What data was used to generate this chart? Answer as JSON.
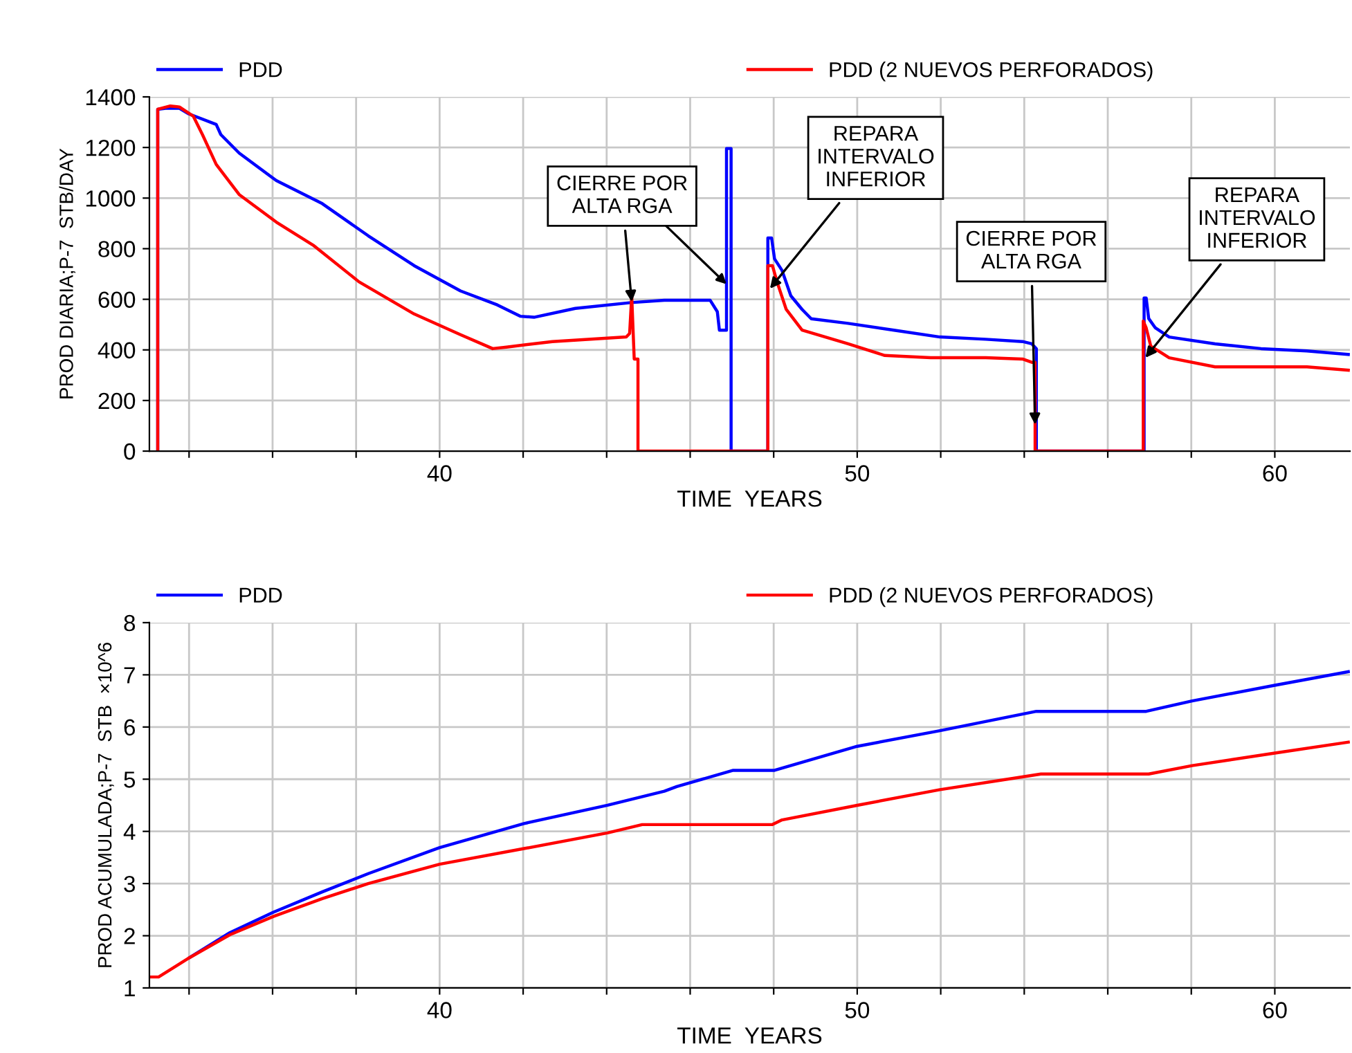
{
  "chart_data": [
    {
      "type": "line",
      "xlabel": "TIME  YEARS",
      "ylabel": "PROD DIARIA;P-7  STB/DAY",
      "xlim": [
        33.05,
        61.8
      ],
      "xticks": [
        {
          "value": 34,
          "label": null
        },
        {
          "value": 36,
          "label": null
        },
        {
          "value": 38,
          "label": null
        },
        40,
        {
          "value": 42,
          "label": null
        },
        {
          "value": 44,
          "label": null
        },
        {
          "value": 46,
          "label": null
        },
        {
          "value": 48,
          "label": null
        },
        50,
        {
          "value": 52,
          "label": null
        },
        {
          "value": 54,
          "label": null
        },
        {
          "value": 56,
          "label": null
        },
        {
          "value": 58,
          "label": null
        },
        60
      ],
      "ylim": [
        0,
        1400
      ],
      "yticks": [
        0,
        200,
        400,
        600,
        800,
        1000,
        1200,
        1400
      ],
      "grid": true,
      "legend": "top",
      "series": [
        {
          "name": "PDD",
          "color": "#0000ff",
          "x": [
            33.25,
            33.25,
            33.44,
            33.77,
            33.99,
            34.65,
            34.76,
            35.2,
            36.09,
            37.19,
            38.29,
            39.39,
            40.5,
            41.38,
            41.93,
            42.26,
            43.25,
            44.58,
            45.38,
            46.48,
            46.65,
            46.7,
            46.87,
            46.87,
            46.98,
            46.98,
            47.86,
            47.86,
            47.95,
            48.02,
            48.2,
            48.41,
            48.68,
            48.9,
            49.78,
            50.88,
            51.98,
            53.08,
            53.96,
            54.18,
            54.29,
            54.29,
            56.87,
            56.87,
            56.92,
            56.98,
            57.14,
            57.47,
            58.57,
            59.67,
            60.77,
            61.76
          ],
          "values": [
            0,
            1351,
            1355,
            1355,
            1333,
            1291,
            1251,
            1178,
            1069,
            978,
            851,
            733,
            633,
            578,
            533,
            529,
            564,
            587,
            596,
            596,
            551,
            478,
            478,
            1196,
            1196,
            0,
            0,
            842,
            842,
            760,
            714,
            614,
            560,
            523,
            505,
            478,
            451,
            442,
            433,
            424,
            405,
            0,
            0,
            605,
            605,
            524,
            487,
            451,
            424,
            405,
            396,
            382
          ]
        },
        {
          "name": "PDD (2 NUEVOS PERFORADOS)",
          "color": "#ff0000",
          "x": [
            33.25,
            33.25,
            33.55,
            33.77,
            34.1,
            34.32,
            34.65,
            35.2,
            36.09,
            36.97,
            38.07,
            39.39,
            40.5,
            41.27,
            41.6,
            42.7,
            44.47,
            44.55,
            44.6,
            44.66,
            44.75,
            44.75,
            47.86,
            47.86,
            47.97,
            48.08,
            48.3,
            48.68,
            49.78,
            50.66,
            51.76,
            53.08,
            53.96,
            54.18,
            54.26,
            54.26,
            56.85,
            56.85,
            56.92,
            57.03,
            57.47,
            58.57,
            59.67,
            60.77,
            61.76
          ],
          "values": [
            0,
            1351,
            1364,
            1360,
            1324,
            1251,
            1133,
            1014,
            905,
            814,
            669,
            542,
            460,
            405,
            411,
            433,
            451,
            465,
            614,
            364,
            364,
            0,
            0,
            733,
            733,
            669,
            560,
            478,
            424,
            378,
            369,
            369,
            364,
            351,
            351,
            0,
            0,
            514,
            487,
            415,
            369,
            333,
            333,
            333,
            320
          ]
        }
      ],
      "annotations": [
        {
          "text": "CIERRE POR\nALTA RGA",
          "x": 44.6,
          "y": 590
        },
        {
          "text": "REPARA\nINTERVALO\nINFERIOR",
          "x": 47.91,
          "y": 642
        },
        {
          "text": "CIERRE POR\nALTA RGA",
          "x": 54.26,
          "y": 105
        },
        {
          "text": "REPARA\nINTERVALO\nINFERIOR",
          "x": 56.9,
          "y": 369
        }
      ]
    },
    {
      "type": "line",
      "xlabel": "TIME  YEARS",
      "ylabel": "PROD ACUMULADA;P-7  STB  ×10^6",
      "xlim": [
        33.05,
        61.8
      ],
      "xticks": [
        {
          "value": 34,
          "label": null
        },
        {
          "value": 36,
          "label": null
        },
        {
          "value": 38,
          "label": null
        },
        40,
        {
          "value": 42,
          "label": null
        },
        {
          "value": 44,
          "label": null
        },
        {
          "value": 46,
          "label": null
        },
        {
          "value": 48,
          "label": null
        },
        50,
        {
          "value": 52,
          "label": null
        },
        {
          "value": 54,
          "label": null
        },
        {
          "value": 56,
          "label": null
        },
        {
          "value": 58,
          "label": null
        },
        60
      ],
      "ylim": [
        1,
        8
      ],
      "yticks": [
        1,
        2,
        3,
        4,
        5,
        6,
        7,
        8
      ],
      "grid": true,
      "legend": "top",
      "series": [
        {
          "name": "PDD",
          "color": "#0000ff",
          "x": [
            34.01,
            34.98,
            36.02,
            37.19,
            38.29,
            40,
            42.02,
            44.02,
            45.38,
            45.68,
            47.03,
            48.02,
            50,
            51.98,
            54.29,
            56.92,
            58.02,
            60,
            61.76
          ],
          "values": [
            1.58,
            2.06,
            2.45,
            2.84,
            3.19,
            3.69,
            4.15,
            4.5,
            4.77,
            4.86,
            5.17,
            5.17,
            5.63,
            5.93,
            6.3,
            6.3,
            6.5,
            6.8,
            7.06
          ]
        },
        {
          "name": "PDD (2 NUEVOS PERFORADOS)",
          "color": "#ff0000",
          "x": [
            33.05,
            33.27,
            34.01,
            34.98,
            36.02,
            37.19,
            38.29,
            40,
            42.02,
            44.02,
            44.85,
            47.97,
            48.2,
            50,
            51.98,
            54.4,
            56.98,
            58.02,
            60,
            61.76
          ],
          "values": [
            1.21,
            1.21,
            1.58,
            2.02,
            2.37,
            2.71,
            3.0,
            3.37,
            3.67,
            3.97,
            4.13,
            4.13,
            4.22,
            4.5,
            4.8,
            5.1,
            5.1,
            5.26,
            5.5,
            5.71
          ]
        }
      ]
    }
  ]
}
